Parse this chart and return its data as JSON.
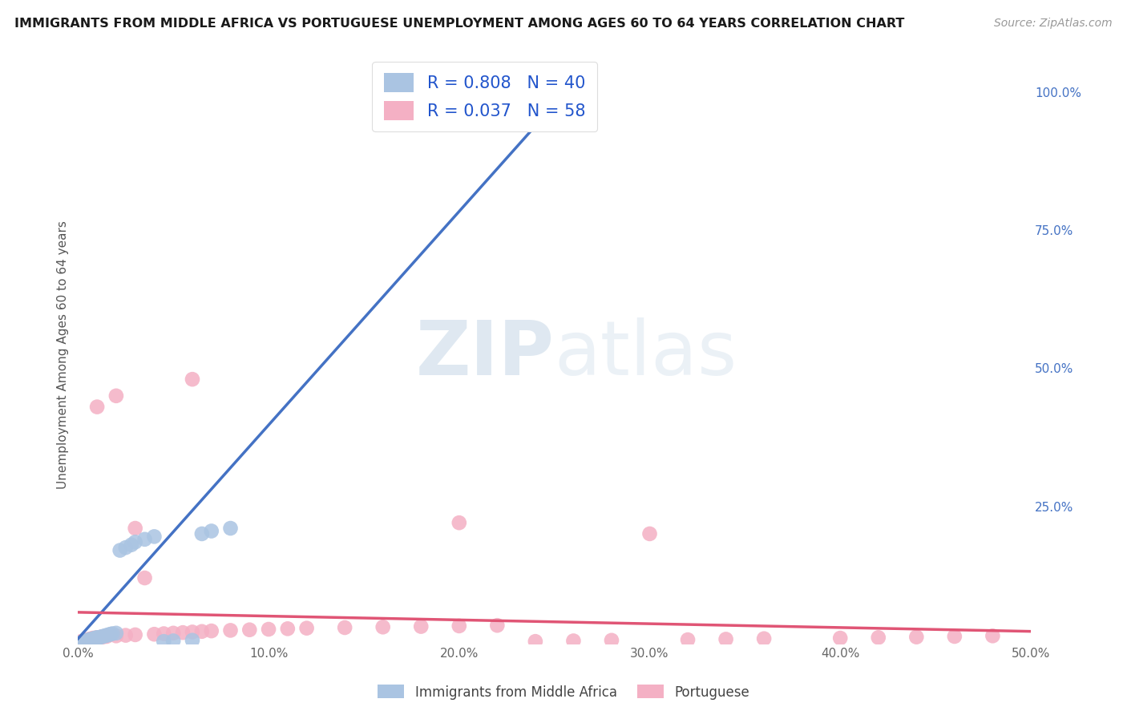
{
  "title": "IMMIGRANTS FROM MIDDLE AFRICA VS PORTUGUESE UNEMPLOYMENT AMONG AGES 60 TO 64 YEARS CORRELATION CHART",
  "source": "Source: ZipAtlas.com",
  "ylabel": "Unemployment Among Ages 60 to 64 years",
  "xlim": [
    0,
    0.5
  ],
  "ylim": [
    0,
    1.05
  ],
  "xtick_labels": [
    "0.0%",
    "10.0%",
    "20.0%",
    "30.0%",
    "40.0%",
    "50.0%"
  ],
  "xtick_vals": [
    0.0,
    0.1,
    0.2,
    0.3,
    0.4,
    0.5
  ],
  "ytick_labels": [
    "100.0%",
    "75.0%",
    "50.0%",
    "25.0%"
  ],
  "ytick_vals": [
    1.0,
    0.75,
    0.5,
    0.25
  ],
  "blue_R": 0.808,
  "blue_N": 40,
  "pink_R": 0.037,
  "pink_N": 58,
  "blue_color": "#aac4e2",
  "blue_line_color": "#4472c4",
  "pink_color": "#f4b0c4",
  "pink_line_color": "#e05575",
  "watermark_zip": "ZIP",
  "watermark_atlas": "atlas",
  "legend_label_blue": "Immigrants from Middle Africa",
  "legend_label_pink": "Portuguese",
  "background_color": "#ffffff",
  "grid_color": "#c8c8c8",
  "blue_scatter_x": [
    0.001,
    0.002,
    0.003,
    0.003,
    0.004,
    0.004,
    0.005,
    0.005,
    0.006,
    0.006,
    0.007,
    0.007,
    0.008,
    0.008,
    0.009,
    0.009,
    0.01,
    0.01,
    0.011,
    0.012,
    0.013,
    0.014,
    0.015,
    0.016,
    0.017,
    0.018,
    0.02,
    0.022,
    0.025,
    0.028,
    0.03,
    0.035,
    0.04,
    0.045,
    0.05,
    0.06,
    0.065,
    0.07,
    0.08,
    0.248
  ],
  "blue_scatter_y": [
    0.002,
    0.003,
    0.004,
    0.005,
    0.005,
    0.006,
    0.006,
    0.007,
    0.007,
    0.008,
    0.008,
    0.009,
    0.009,
    0.01,
    0.01,
    0.011,
    0.011,
    0.012,
    0.012,
    0.013,
    0.014,
    0.015,
    0.016,
    0.017,
    0.018,
    0.019,
    0.02,
    0.17,
    0.175,
    0.18,
    0.185,
    0.19,
    0.195,
    0.005,
    0.006,
    0.007,
    0.2,
    0.205,
    0.21,
    0.97
  ],
  "pink_scatter_x": [
    0.001,
    0.002,
    0.003,
    0.003,
    0.004,
    0.004,
    0.005,
    0.005,
    0.006,
    0.006,
    0.007,
    0.007,
    0.008,
    0.008,
    0.009,
    0.01,
    0.011,
    0.012,
    0.013,
    0.015,
    0.02,
    0.025,
    0.03,
    0.035,
    0.04,
    0.045,
    0.05,
    0.055,
    0.06,
    0.065,
    0.07,
    0.08,
    0.09,
    0.1,
    0.11,
    0.12,
    0.14,
    0.16,
    0.18,
    0.2,
    0.22,
    0.24,
    0.26,
    0.28,
    0.3,
    0.32,
    0.34,
    0.36,
    0.4,
    0.42,
    0.44,
    0.46,
    0.48,
    0.01,
    0.02,
    0.03,
    0.06,
    0.2
  ],
  "pink_scatter_y": [
    0.004,
    0.005,
    0.005,
    0.006,
    0.006,
    0.007,
    0.007,
    0.008,
    0.008,
    0.009,
    0.009,
    0.01,
    0.01,
    0.011,
    0.011,
    0.012,
    0.012,
    0.013,
    0.013,
    0.014,
    0.015,
    0.016,
    0.017,
    0.12,
    0.018,
    0.019,
    0.02,
    0.021,
    0.022,
    0.023,
    0.024,
    0.025,
    0.026,
    0.027,
    0.028,
    0.029,
    0.03,
    0.031,
    0.032,
    0.033,
    0.034,
    0.005,
    0.006,
    0.007,
    0.2,
    0.008,
    0.009,
    0.01,
    0.011,
    0.012,
    0.013,
    0.014,
    0.015,
    0.43,
    0.45,
    0.21,
    0.48,
    0.22
  ]
}
